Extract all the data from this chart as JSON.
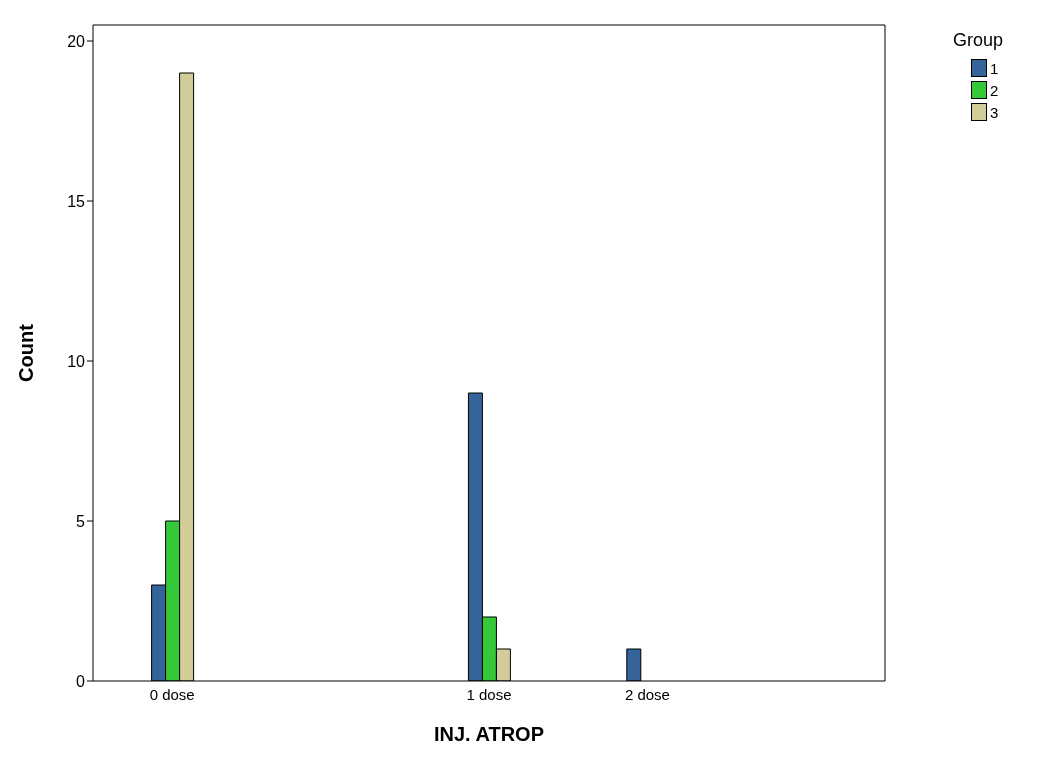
{
  "chart_data": {
    "type": "bar",
    "xlabel": "INJ. ATROP",
    "ylabel": "Count",
    "legend_title": "Group",
    "categories": [
      "0 dose",
      null,
      "1 dose",
      "2 dose",
      null
    ],
    "series": [
      {
        "name": "1",
        "color": "#35649a",
        "values": [
          3,
          0,
          9,
          1,
          0
        ]
      },
      {
        "name": "2",
        "color": "#35c93a",
        "values": [
          5,
          0,
          2,
          0,
          0
        ]
      },
      {
        "name": "3",
        "color": "#d2cd98",
        "values": [
          19,
          0,
          1,
          0,
          0
        ]
      }
    ],
    "ylim": [
      0,
      20.5
    ],
    "yticks": [
      0,
      5,
      10,
      15,
      20
    ],
    "grid": false,
    "legend": "top right"
  }
}
